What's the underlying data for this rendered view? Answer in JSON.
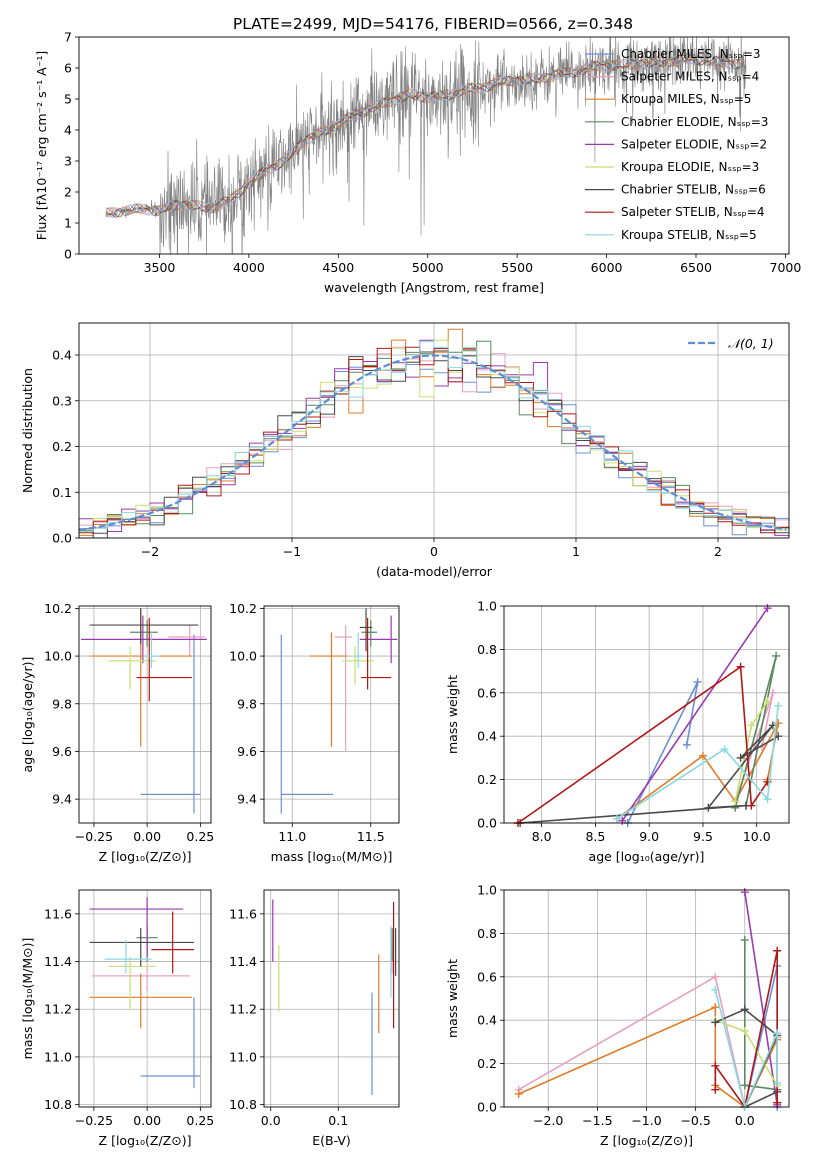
{
  "figure_title": "PLATE=2499, MJD=54176, FIBERID=0566, z=0.348",
  "colors": {
    "chabrier_miles": "#6b8fd6",
    "salpeter_miles": "#e8a0c0",
    "kroupa_miles": "#e07b28",
    "chabrier_elodie": "#5a8a5e",
    "salpeter_elodie": "#9a3ab0",
    "kroupa_elodie": "#c8e070",
    "chabrier_stelib": "#4a4a4a",
    "salpeter_stelib": "#b01818",
    "kroupa_stelib": "#88d8e0",
    "data": "#808080",
    "normal": "#5a8fd6"
  },
  "chart_data": [
    {
      "id": "spectrum",
      "type": "line",
      "title": "PLATE=2499, MJD=54176, FIBERID=0566, z=0.348",
      "xlabel": "wavelength [Angstrom, rest frame]",
      "ylabel": "Flux [fλ10⁻¹⁷ erg cm⁻² s⁻¹ A⁻¹]",
      "xlim": [
        3050,
        7020
      ],
      "ylim": [
        0,
        7
      ],
      "xticks": [
        "3500",
        "4000",
        "4500",
        "5000",
        "5500",
        "6000",
        "6500",
        "7000"
      ],
      "yticks": [
        "0",
        "1",
        "2",
        "3",
        "4",
        "5",
        "6",
        "7"
      ],
      "continuum": {
        "x": [
          3200,
          3300,
          3400,
          3500,
          3600,
          3700,
          3800,
          3900,
          4000,
          4100,
          4200,
          4300,
          4400,
          4500,
          4600,
          4700,
          4800,
          4900,
          5000,
          5100,
          5200,
          5300,
          5400,
          5500,
          5600,
          5700,
          5800,
          5900,
          6000,
          6100,
          6200,
          6300,
          6400,
          6500,
          6600,
          6700,
          6780
        ],
        "y": [
          1.3,
          1.4,
          1.45,
          1.4,
          1.6,
          1.55,
          1.5,
          1.75,
          2.3,
          2.7,
          3.0,
          3.6,
          3.9,
          4.2,
          4.5,
          4.75,
          4.95,
          5.15,
          5.05,
          5.1,
          5.3,
          5.35,
          5.55,
          5.6,
          5.65,
          5.75,
          5.85,
          6.0,
          6.1,
          6.1,
          6.15,
          6.2,
          6.25,
          6.3,
          6.2,
          6.15,
          6.1
        ]
      },
      "data_noise": [
        [
          3200,
          3450,
          0.15
        ],
        [
          3500,
          3980,
          1.6
        ],
        [
          3980,
          4500,
          1.4
        ],
        [
          4500,
          5300,
          1.6
        ],
        [
          5300,
          6780,
          1.0
        ]
      ],
      "legend_position": "upper-right",
      "legend": [
        {
          "label": "Chabrier MILES, Nₛₛₚ=3",
          "color_key": "chabrier_miles",
          "marker": ""
        },
        {
          "label": "Salpeter MILES, Nₛₛₚ=4",
          "color_key": "salpeter_miles",
          "marker": ""
        },
        {
          "label": "Kroupa MILES, Nₛₛₚ=5",
          "color_key": "kroupa_miles",
          "marker": "+"
        },
        {
          "label": "Chabrier ELODIE, Nₛₛₚ=3",
          "color_key": "chabrier_elodie",
          "marker": "+"
        },
        {
          "label": "Salpeter ELODIE, Nₛₛₚ=2",
          "color_key": "salpeter_elodie",
          "marker": ""
        },
        {
          "label": "Kroupa ELODIE, Nₛₛₚ=3",
          "color_key": "kroupa_elodie",
          "marker": ""
        },
        {
          "label": "Chabrier STELIB, Nₛₛₚ=6",
          "color_key": "chabrier_stelib",
          "marker": ""
        },
        {
          "label": "Salpeter STELIB, Nₛₛₚ=4",
          "color_key": "salpeter_stelib",
          "marker": ""
        },
        {
          "label": "Kroupa STELIB, Nₛₛₚ=5",
          "color_key": "kroupa_stelib",
          "marker": ""
        }
      ]
    },
    {
      "id": "residuals",
      "type": "histogram",
      "xlabel": "(data-model)/error",
      "ylabel": "Normed distribution",
      "xlim": [
        -2.5,
        2.5
      ],
      "ylim": [
        0,
        0.47
      ],
      "xticks": [
        "−2",
        "−1",
        "0",
        "1",
        "2"
      ],
      "yticks": [
        "0.0",
        "0.1",
        "0.2",
        "0.3",
        "0.4"
      ],
      "grid": true,
      "bin_width": 0.1,
      "legend": "𝒩(0, 1)",
      "legend_position": "upper-right"
    },
    {
      "id": "age_vs_Z",
      "type": "errorbar",
      "xlabel": "Z [log₁₀(Z/Z⊙)]",
      "ylabel": "age  [log₁₀(age/yr)]",
      "xlim": [
        -0.32,
        0.3
      ],
      "ylim": [
        9.3,
        10.21
      ],
      "xticks": [
        "−0.25",
        "0.00",
        "0.25"
      ],
      "yticks": [
        "9.4",
        "9.6",
        "9.8",
        "10.0",
        "10.2"
      ],
      "points": [
        {
          "s": "chabrier_miles",
          "x": 0.22,
          "y": 9.42,
          "xerr": [
            0.25,
            0.03
          ],
          "yerr": [
            0.08,
            0.67
          ]
        },
        {
          "s": "salpeter_miles",
          "x": 0.2,
          "y": 10.08,
          "xerr": [
            0.1,
            0.07
          ],
          "yerr": [
            0.08,
            0.05
          ]
        },
        {
          "s": "kroupa_miles",
          "x": -0.03,
          "y": 10.0,
          "xerr": [
            0.24,
            0.24
          ],
          "yerr": [
            0.38,
            0.2
          ]
        },
        {
          "s": "chabrier_elodie",
          "x": 0.0,
          "y": 10.1,
          "xerr": [
            0.08,
            0.05
          ],
          "yerr": [
            0.06,
            0.05
          ]
        },
        {
          "s": "salpeter_elodie",
          "x": -0.02,
          "y": 10.07,
          "xerr": [
            0.29,
            0.3
          ],
          "yerr": [
            0.1,
            0.1
          ]
        },
        {
          "s": "kroupa_elodie",
          "x": -0.08,
          "y": 9.98,
          "xerr": [
            0.1,
            0.12
          ],
          "yerr": [
            0.12,
            0.06
          ]
        },
        {
          "s": "chabrier_stelib",
          "x": -0.03,
          "y": 10.13,
          "xerr": [
            0.24,
            0.27
          ],
          "yerr": [
            0.08,
            0.07
          ]
        },
        {
          "s": "salpeter_stelib",
          "x": 0.01,
          "y": 9.91,
          "xerr": [
            0.06,
            0.2
          ],
          "yerr": [
            0.1,
            0.25
          ]
        },
        {
          "s": "kroupa_stelib",
          "x": 0.02,
          "y": 10.0,
          "xerr": [
            0.04,
            0.04
          ],
          "yerr": [
            0.05,
            0.1
          ]
        }
      ]
    },
    {
      "id": "age_vs_mass",
      "type": "errorbar",
      "xlabel": "mass [log₁₀(M/M⊙)]",
      "ylabel": "",
      "xlim": [
        10.82,
        11.68
      ],
      "ylim": [
        9.3,
        10.21
      ],
      "xticks": [
        "11.0",
        "11.5"
      ],
      "yticks": [
        "9.4",
        "9.6",
        "9.8",
        "10.0",
        "10.2"
      ],
      "points": [
        {
          "s": "chabrier_miles",
          "x": 10.93,
          "y": 9.42,
          "xerr": [
            0.0,
            0.33
          ],
          "yerr": [
            0.08,
            0.67
          ]
        },
        {
          "s": "salpeter_miles",
          "x": 11.34,
          "y": 10.08,
          "xerr": [
            0.07,
            0.04
          ],
          "yerr": [
            0.48,
            0.05
          ]
        },
        {
          "s": "kroupa_miles",
          "x": 11.25,
          "y": 10.0,
          "xerr": [
            0.14,
            0.1
          ],
          "yerr": [
            0.38,
            0.1
          ]
        },
        {
          "s": "chabrier_elodie",
          "x": 11.5,
          "y": 10.1,
          "xerr": [
            0.06,
            0.04
          ],
          "yerr": [
            0.06,
            0.05
          ]
        },
        {
          "s": "salpeter_elodie",
          "x": 11.63,
          "y": 10.07,
          "xerr": [
            0.2,
            0.04
          ],
          "yerr": [
            0.1,
            0.1
          ]
        },
        {
          "s": "kroupa_elodie",
          "x": 11.4,
          "y": 9.98,
          "xerr": [
            0.08,
            0.12
          ],
          "yerr": [
            0.1,
            0.06
          ]
        },
        {
          "s": "chabrier_stelib",
          "x": 11.47,
          "y": 10.12,
          "xerr": [
            0.04,
            0.04
          ],
          "yerr": [
            0.1,
            0.08
          ]
        },
        {
          "s": "salpeter_stelib",
          "x": 11.48,
          "y": 9.91,
          "xerr": [
            0.04,
            0.15
          ],
          "yerr": [
            0.05,
            0.25
          ]
        },
        {
          "s": "kroupa_stelib",
          "x": 11.42,
          "y": 10.0,
          "xerr": [
            0.02,
            0.04
          ],
          "yerr": [
            0.05,
            0.1
          ]
        }
      ]
    },
    {
      "id": "weight_vs_age",
      "type": "line",
      "xlabel": "age  [log₁₀(age/yr)]",
      "ylabel": "mass weight",
      "xlim": [
        7.65,
        10.3
      ],
      "ylim": [
        0,
        1
      ],
      "xticks": [
        "8.0",
        "8.5",
        "9.0",
        "9.5",
        "10.0"
      ],
      "yticks": [
        "0.0",
        "0.2",
        "0.4",
        "0.6",
        "0.8",
        "1.0"
      ],
      "grid": true,
      "series": [
        {
          "s": "chabrier_miles",
          "x": [
            8.8,
            9.45,
            9.35
          ],
          "y": [
            0.0,
            0.65,
            0.36
          ]
        },
        {
          "s": "salpeter_miles",
          "x": [
            9.8,
            10.15,
            10.05
          ],
          "y": [
            0.1,
            0.6,
            0.35
          ]
        },
        {
          "s": "kroupa_miles",
          "x": [
            8.7,
            9.5,
            9.8,
            10.2,
            10.1
          ],
          "y": [
            0.02,
            0.31,
            0.1,
            0.46,
            0.2
          ]
        },
        {
          "s": "chabrier_elodie",
          "x": [
            9.8,
            10.18,
            9.9
          ],
          "y": [
            0.07,
            0.77,
            0.08
          ]
        },
        {
          "s": "salpeter_elodie",
          "x": [
            8.75,
            10.1
          ],
          "y": [
            0.01,
            0.99
          ]
        },
        {
          "s": "kroupa_elodie",
          "x": [
            9.8,
            9.95,
            10.1
          ],
          "y": [
            0.1,
            0.45,
            0.56
          ]
        },
        {
          "s": "chabrier_stelib",
          "x": [
            7.8,
            9.9,
            9.55,
            10.15,
            9.85,
            10.2
          ],
          "y": [
            0.0,
            0.08,
            0.07,
            0.45,
            0.3,
            0.4
          ]
        },
        {
          "s": "salpeter_stelib",
          "x": [
            7.78,
            9.85,
            9.95,
            10.1
          ],
          "y": [
            0.0,
            0.72,
            0.08,
            0.19
          ]
        },
        {
          "s": "kroupa_stelib",
          "x": [
            8.7,
            9.7,
            10.1,
            10.2
          ],
          "y": [
            0.02,
            0.34,
            0.11,
            0.54
          ]
        }
      ]
    },
    {
      "id": "mass_vs_Z",
      "type": "errorbar",
      "xlabel": "Z [log₁₀(Z/Z⊙)]",
      "ylabel": "mass [log₁₀(M/M⊙)]",
      "xlim": [
        -0.32,
        0.3
      ],
      "ylim": [
        10.79,
        11.7
      ],
      "xticks": [
        "−0.25",
        "0.00",
        "0.25"
      ],
      "yticks": [
        "10.8",
        "11.0",
        "11.2",
        "11.4",
        "11.6"
      ],
      "points": [
        {
          "s": "chabrier_miles",
          "x": 0.22,
          "y": 10.92,
          "xerr": [
            0.25,
            0.03
          ],
          "yerr": [
            0.05,
            0.33
          ]
        },
        {
          "s": "salpeter_miles",
          "x": 0.0,
          "y": 11.34,
          "xerr": [
            0.26,
            0.2
          ],
          "yerr": [
            0.06,
            0.04
          ]
        },
        {
          "s": "kroupa_miles",
          "x": -0.03,
          "y": 11.25,
          "xerr": [
            0.24,
            0.24
          ],
          "yerr": [
            0.13,
            0.1
          ]
        },
        {
          "s": "chabrier_elodie",
          "x": 0.0,
          "y": 11.5,
          "xerr": [
            0.05,
            0.05
          ],
          "yerr": [
            0.1,
            0.05
          ]
        },
        {
          "s": "salpeter_elodie",
          "x": 0.0,
          "y": 11.62,
          "xerr": [
            0.27,
            0.17
          ],
          "yerr": [
            0.2,
            0.05
          ]
        },
        {
          "s": "kroupa_elodie",
          "x": -0.08,
          "y": 11.38,
          "xerr": [
            0.1,
            0.12
          ],
          "yerr": [
            0.18,
            0.04
          ]
        },
        {
          "s": "chabrier_stelib",
          "x": -0.03,
          "y": 11.48,
          "xerr": [
            0.24,
            0.25
          ],
          "yerr": [
            0.1,
            0.06
          ]
        },
        {
          "s": "salpeter_stelib",
          "x": 0.12,
          "y": 11.45,
          "xerr": [
            0.1,
            0.1
          ],
          "yerr": [
            0.1,
            0.16
          ]
        },
        {
          "s": "kroupa_stelib",
          "x": -0.1,
          "y": 11.41,
          "xerr": [
            0.1,
            0.12
          ],
          "yerr": [
            0.06,
            0.08
          ]
        }
      ]
    },
    {
      "id": "mass_vs_ebv",
      "type": "errorbar",
      "xlabel": "E(B-V)",
      "ylabel": "",
      "xlim": [
        -0.01,
        0.19
      ],
      "ylim": [
        10.79,
        11.7
      ],
      "xticks": [
        "0.0",
        "0.1"
      ],
      "yticks": [
        "10.8",
        "11.0",
        "11.2",
        "11.4",
        "11.6"
      ],
      "points": [
        {
          "s": "chabrier_miles",
          "x": 0.15,
          "y": 11.0,
          "xerr": [
            0,
            0
          ],
          "yerr": [
            0.16,
            0.27
          ]
        },
        {
          "s": "salpeter_miles",
          "x": 0.18,
          "y": 11.35,
          "xerr": [
            0,
            0
          ],
          "yerr": [
            0.0,
            0.1
          ]
        },
        {
          "s": "kroupa_miles",
          "x": 0.16,
          "y": 11.25,
          "xerr": [
            0,
            0
          ],
          "yerr": [
            0.15,
            0.18
          ]
        },
        {
          "s": "chabrier_elodie",
          "x": 0.18,
          "y": 11.5,
          "xerr": [
            0,
            0
          ],
          "yerr": [
            0.1,
            0.04
          ]
        },
        {
          "s": "salpeter_elodie",
          "x": 0.003,
          "y": 11.55,
          "xerr": [
            0,
            0
          ],
          "yerr": [
            0.15,
            0.11
          ]
        },
        {
          "s": "kroupa_elodie",
          "x": 0.012,
          "y": 11.35,
          "xerr": [
            0,
            0
          ],
          "yerr": [
            0.16,
            0.12
          ]
        },
        {
          "s": "chabrier_stelib",
          "x": 0.185,
          "y": 11.45,
          "xerr": [
            0,
            0
          ],
          "yerr": [
            0.11,
            0.09
          ]
        },
        {
          "s": "salpeter_stelib",
          "x": 0.182,
          "y": 11.4,
          "xerr": [
            0,
            0
          ],
          "yerr": [
            0.28,
            0.25
          ]
        },
        {
          "s": "kroupa_stelib",
          "x": 0.178,
          "y": 11.35,
          "xerr": [
            0,
            0
          ],
          "yerr": [
            0.1,
            0.2
          ]
        }
      ]
    },
    {
      "id": "weight_vs_Z",
      "type": "line",
      "xlabel": "Z [log₁₀(Z/Z⊙)]",
      "ylabel": "mass weight",
      "xlim": [
        -2.45,
        0.45
      ],
      "ylim": [
        0,
        1
      ],
      "xticks": [
        "−2.0",
        "−1.5",
        "−1.0",
        "−0.5",
        "0.0"
      ],
      "yticks": [
        "0.0",
        "0.2",
        "0.4",
        "0.6",
        "0.8",
        "1.0"
      ],
      "grid": true,
      "series": [
        {
          "s": "chabrier_miles",
          "x": [
            0.0,
            0.33,
            0.33
          ],
          "y": [
            0.0,
            0.65,
            0.0
          ]
        },
        {
          "s": "salpeter_miles",
          "x": [
            -2.3,
            -0.3,
            0.0,
            0.33
          ],
          "y": [
            0.08,
            0.6,
            0.0,
            0.32
          ]
        },
        {
          "s": "kroupa_miles",
          "x": [
            -2.3,
            -0.3,
            -0.3,
            0.0,
            0.33,
            0.33
          ],
          "y": [
            0.06,
            0.46,
            0.1,
            0.0,
            0.31,
            0.02
          ]
        },
        {
          "s": "chabrier_elodie",
          "x": [
            0.0,
            0.0,
            0.33
          ],
          "y": [
            0.77,
            0.1,
            0.08
          ]
        },
        {
          "s": "salpeter_elodie",
          "x": [
            0.0,
            0.33
          ],
          "y": [
            0.99,
            0.01
          ]
        },
        {
          "s": "kroupa_elodie",
          "x": [
            -0.3,
            0.0,
            0.33
          ],
          "y": [
            0.4,
            0.35,
            0.1
          ]
        },
        {
          "s": "chabrier_stelib",
          "x": [
            -0.3,
            0.0,
            0.33,
            0.0,
            0.33
          ],
          "y": [
            0.39,
            0.45,
            0.33,
            0.0,
            0.07
          ]
        },
        {
          "s": "salpeter_stelib",
          "x": [
            -0.3,
            -0.3,
            0.0,
            0.33,
            0.33
          ],
          "y": [
            0.08,
            0.19,
            0.0,
            0.72,
            0.02
          ]
        },
        {
          "s": "kroupa_stelib",
          "x": [
            -0.3,
            0.0,
            0.33,
            0.33
          ],
          "y": [
            0.54,
            0.0,
            0.34,
            0.11
          ]
        }
      ]
    }
  ]
}
